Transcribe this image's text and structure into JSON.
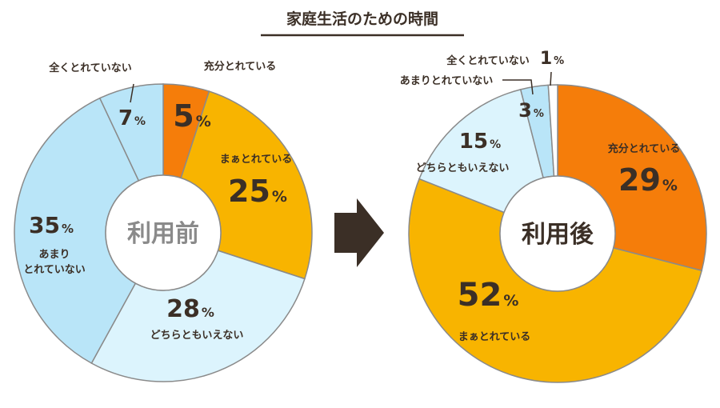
{
  "title": "家庭生活のための時間",
  "chart_data": [
    {
      "type": "pie",
      "title": "利用前",
      "unit": "%",
      "slices": [
        {
          "label": "充分とれている",
          "value": 5,
          "color": "#f57d0a"
        },
        {
          "label": "まぁとれている",
          "value": 25,
          "color": "#f8b400"
        },
        {
          "label": "どちらともいえない",
          "value": 28,
          "color": "#dcf4fd"
        },
        {
          "label": "あまりとれていない",
          "label_lines": [
            "あまり",
            "とれていない"
          ],
          "value": 35,
          "color": "#b9e5f8"
        },
        {
          "label": "全くとれていない",
          "value": 7,
          "color": "#ffffff"
        }
      ]
    },
    {
      "type": "pie",
      "title": "利用後",
      "unit": "%",
      "slices": [
        {
          "label": "充分とれている",
          "value": 29,
          "color": "#f57d0a"
        },
        {
          "label": "まぁとれている",
          "value": 52,
          "color": "#f8b400"
        },
        {
          "label": "どちらともいえない",
          "value": 15,
          "color": "#dcf4fd"
        },
        {
          "label": "あまりとれていない",
          "value": 3,
          "color": "#b9e5f8"
        },
        {
          "label": "全くとれていない",
          "value": 1,
          "color": "#ffffff"
        }
      ]
    }
  ],
  "colors": {
    "text": "#3b2f26",
    "arrow": "#3b2f26",
    "stroke": "#8a8a8a",
    "center_text": "#8a8a8a",
    "center_text_after": "#3b2f26",
    "first_small_slice_fill": "#b9e5f8"
  }
}
